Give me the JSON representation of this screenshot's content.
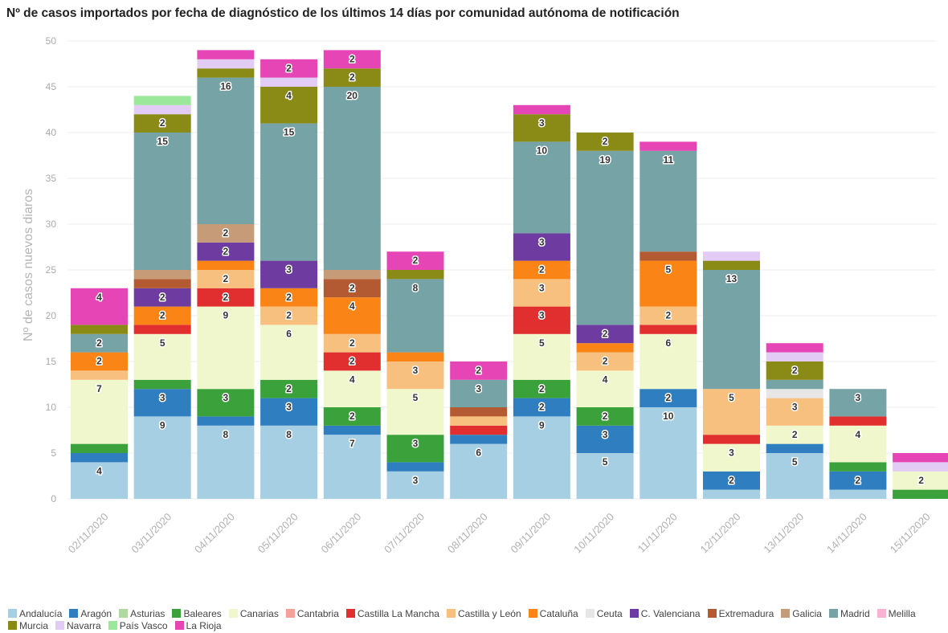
{
  "chart_data": {
    "type": "bar",
    "stacked": true,
    "title": "Nº de casos importados por fecha de diagnóstico de los últimos 14 días por comunidad autónoma de notificación",
    "xlabel": "",
    "ylabel": "Nº de casos nuevos diaros",
    "ylim": [
      0,
      50
    ],
    "yticks": [
      0,
      5,
      10,
      15,
      20,
      25,
      30,
      35,
      40,
      45,
      50
    ],
    "grid": true,
    "legend_position": "bottom",
    "categories": [
      "02/11/2020",
      "03/11/2020",
      "04/11/2020",
      "05/11/2020",
      "06/11/2020",
      "07/11/2020",
      "08/11/2020",
      "09/11/2020",
      "10/11/2020",
      "11/11/2020",
      "12/11/2020",
      "13/11/2020",
      "14/11/2020",
      "15/11/2020"
    ],
    "series": [
      {
        "name": "Andalucía",
        "color": "#a6cfe4",
        "values": [
          4,
          9,
          8,
          8,
          7,
          3,
          6,
          9,
          5,
          10,
          1,
          5,
          1,
          0
        ]
      },
      {
        "name": "Aragón",
        "color": "#2f7fc0",
        "values": [
          1,
          3,
          1,
          3,
          1,
          1,
          1,
          2,
          3,
          2,
          2,
          1,
          2,
          0
        ]
      },
      {
        "name": "Asturias",
        "color": "#b0d9a0",
        "values": [
          0,
          0,
          0,
          0,
          0,
          0,
          0,
          0,
          0,
          0,
          0,
          0,
          0,
          0
        ]
      },
      {
        "name": "Baleares",
        "color": "#3ba23b",
        "values": [
          1,
          1,
          3,
          2,
          2,
          3,
          0,
          2,
          2,
          0,
          0,
          0,
          1,
          1
        ]
      },
      {
        "name": "Canarias",
        "color": "#f1f7cd",
        "values": [
          7,
          5,
          9,
          6,
          4,
          5,
          0,
          5,
          4,
          6,
          3,
          2,
          4,
          2
        ]
      },
      {
        "name": "Cantabria",
        "color": "#f4a19a",
        "values": [
          0,
          0,
          0,
          0,
          0,
          0,
          0,
          0,
          0,
          0,
          0,
          0,
          0,
          0
        ]
      },
      {
        "name": "Castilla La Mancha",
        "color": "#e12f30",
        "values": [
          0,
          1,
          2,
          0,
          2,
          0,
          1,
          3,
          0,
          1,
          1,
          0,
          1,
          0
        ]
      },
      {
        "name": "Castilla y León",
        "color": "#f8c07f",
        "values": [
          1,
          0,
          2,
          2,
          2,
          3,
          1,
          3,
          2,
          2,
          5,
          3,
          0,
          0
        ]
      },
      {
        "name": "Cataluña",
        "color": "#fb8417",
        "values": [
          2,
          2,
          1,
          2,
          4,
          1,
          0,
          2,
          1,
          5,
          0,
          0,
          0,
          0
        ]
      },
      {
        "name": "Ceuta",
        "color": "#e6e6e6",
        "values": [
          0,
          0,
          0,
          0,
          0,
          0,
          0,
          0,
          0,
          0,
          0,
          1,
          0,
          0
        ]
      },
      {
        "name": "C. Valenciana",
        "color": "#6e3ba0",
        "values": [
          0,
          2,
          2,
          3,
          0,
          0,
          0,
          3,
          2,
          0,
          0,
          0,
          0,
          0
        ]
      },
      {
        "name": "Extremadura",
        "color": "#b35a32",
        "values": [
          0,
          1,
          0,
          0,
          2,
          0,
          1,
          0,
          0,
          1,
          0,
          0,
          0,
          0
        ]
      },
      {
        "name": "Galicia",
        "color": "#c69b78",
        "values": [
          0,
          1,
          2,
          0,
          1,
          0,
          0,
          0,
          0,
          0,
          0,
          0,
          0,
          0
        ]
      },
      {
        "name": "Madrid",
        "color": "#76a3a6",
        "values": [
          2,
          15,
          16,
          15,
          20,
          8,
          3,
          10,
          19,
          11,
          13,
          1,
          3,
          0
        ]
      },
      {
        "name": "Melilla",
        "color": "#f7b4d2",
        "values": [
          0,
          0,
          0,
          0,
          0,
          0,
          0,
          0,
          0,
          0,
          0,
          0,
          0,
          0
        ]
      },
      {
        "name": "Murcia",
        "color": "#8a8a16",
        "values": [
          1,
          2,
          1,
          4,
          2,
          1,
          0,
          3,
          2,
          0,
          1,
          2,
          0,
          0
        ]
      },
      {
        "name": "Navarra",
        "color": "#e2cbf5",
        "values": [
          0,
          1,
          1,
          1,
          0,
          0,
          0,
          0,
          0,
          0,
          1,
          1,
          0,
          1
        ]
      },
      {
        "name": "País Vasco",
        "color": "#9be89b",
        "values": [
          0,
          1,
          0,
          0,
          0,
          0,
          0,
          0,
          0,
          0,
          0,
          0,
          0,
          0
        ]
      },
      {
        "name": "La Rioja",
        "color": "#e545b5",
        "values": [
          4,
          0,
          1,
          2,
          2,
          2,
          2,
          1,
          0,
          1,
          0,
          1,
          0,
          1
        ]
      }
    ]
  }
}
